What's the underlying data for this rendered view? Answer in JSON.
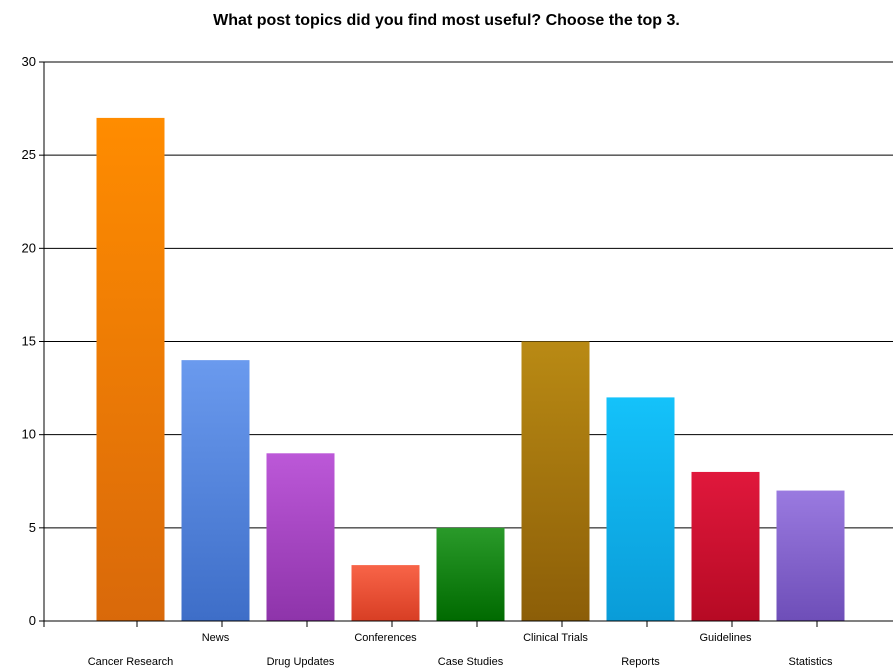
{
  "chart_data": {
    "type": "bar",
    "title": "What post topics did you find most useful? Choose the top 3.",
    "xlabel": "",
    "ylabel": "",
    "ylim": [
      0,
      30
    ],
    "yticks": [
      0,
      5,
      10,
      15,
      20,
      25,
      30
    ],
    "grid": true,
    "legend": "none",
    "categories": [
      "Cancer Research",
      "News",
      "Drug Updates",
      "Conferences",
      "Case Studies",
      "Clinical Trials",
      "Reports",
      "Guidelines",
      "Statistics"
    ],
    "values": [
      27,
      14,
      9,
      3,
      5,
      15,
      12,
      8,
      7
    ],
    "label_rows": [
      "bottom",
      "top",
      "bottom",
      "top",
      "bottom",
      "top",
      "bottom",
      "top",
      "bottom"
    ],
    "colors": [
      [
        "#FF8C00",
        "#D9690A"
      ],
      [
        "#6A9AEE",
        "#3E6EC8"
      ],
      [
        "#BC58D8",
        "#8E34AA"
      ],
      [
        "#F86448",
        "#D83E24"
      ],
      [
        "#2A9A2A",
        "#006A00"
      ],
      [
        "#B98A14",
        "#8C5E08"
      ],
      [
        "#14C2FA",
        "#0A9CD8"
      ],
      [
        "#E0183C",
        "#B60A24"
      ],
      [
        "#9A7AE0",
        "#6E4EB8"
      ]
    ]
  }
}
